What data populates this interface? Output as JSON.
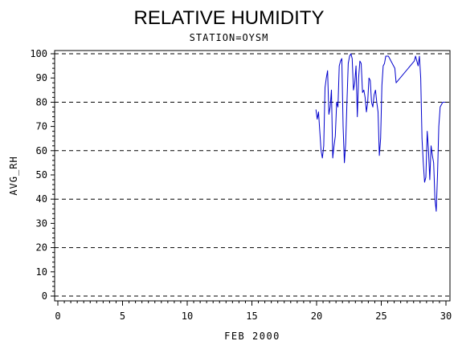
{
  "chart_data": {
    "type": "line",
    "title": "RELATIVE HUMIDITY",
    "subtitle": "STATION=OYSM",
    "xlabel": "FEB 2000",
    "ylabel": "AVG_RH",
    "xlim": [
      0,
      30
    ],
    "ylim": [
      0,
      100
    ],
    "x_ticks": [
      0,
      5,
      10,
      15,
      20,
      25,
      30
    ],
    "y_ticks": [
      0,
      10,
      20,
      30,
      40,
      50,
      60,
      70,
      80,
      90,
      100
    ],
    "grid_y": [
      0,
      20,
      40,
      60,
      80,
      100
    ],
    "grid_style": "dashed",
    "line_color": "#0000cc",
    "series": [
      {
        "x": [
          19.95,
          20.05,
          20.15,
          20.25,
          20.35,
          20.45,
          20.55,
          20.65,
          20.75,
          20.85,
          20.95,
          21.05,
          21.15,
          21.25,
          21.35,
          21.45,
          21.55,
          21.65,
          21.75,
          21.85,
          21.95,
          22.05,
          22.15,
          22.25,
          22.35,
          22.45,
          22.55,
          22.65,
          22.75,
          22.85,
          22.95,
          23.05,
          23.15,
          23.25,
          23.35,
          23.45,
          23.55,
          23.65,
          23.75,
          23.85,
          23.95,
          24.05,
          24.15,
          24.25,
          24.35,
          24.45,
          24.55,
          24.65,
          24.75,
          24.85,
          24.95,
          25.05,
          25.15,
          25.25,
          25.35,
          25.45,
          25.55,
          25.65,
          25.75,
          25.85,
          25.95,
          26.05,
          26.15,
          27.55,
          27.65,
          27.75,
          27.85,
          27.95,
          28.05,
          28.15,
          28.25,
          28.35,
          28.45,
          28.55,
          28.65,
          28.75,
          28.85,
          28.95,
          29.05,
          29.15,
          29.25,
          29.35,
          29.45,
          29.55,
          29.65,
          29.75,
          29.85,
          29.95
        ],
        "y": [
          77,
          73,
          76,
          68,
          60,
          57,
          62,
          86,
          90,
          93,
          75,
          78,
          85,
          57,
          62,
          66,
          80,
          78,
          95,
          97,
          98,
          70,
          55,
          63,
          80,
          96,
          99,
          100,
          98,
          85,
          88,
          95,
          74,
          90,
          97,
          96,
          84,
          85,
          82,
          76,
          80,
          90,
          89,
          80,
          78,
          83,
          85,
          80,
          76,
          58,
          65,
          87,
          95,
          96,
          99,
          99,
          99,
          98,
          97,
          96,
          95,
          94,
          88,
          97,
          99,
          97,
          95,
          99,
          90,
          65,
          55,
          47,
          49,
          68,
          60,
          48,
          62,
          58,
          55,
          40,
          35,
          50,
          70,
          78,
          79,
          80,
          80,
          80
        ]
      }
    ]
  }
}
